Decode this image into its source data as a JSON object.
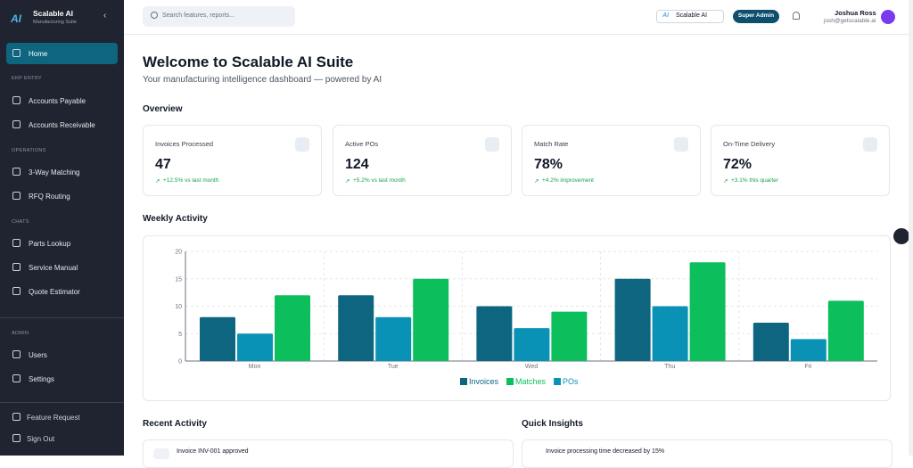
{
  "brand": {
    "name": "Scalable AI",
    "subtitle": "Manufacturing Suite",
    "logo": "AI"
  },
  "nav": {
    "home": "Home",
    "sections": [
      {
        "title": "ERP ENTRY",
        "items": [
          "Accounts Payable",
          "Accounts Receivable"
        ]
      },
      {
        "title": "OPERATIONS",
        "items": [
          "3-Way Matching",
          "RFQ Routing"
        ]
      },
      {
        "title": "CHATS",
        "items": [
          "Parts Lookup",
          "Service Manual",
          "Quote Estimator"
        ]
      },
      {
        "title": "ADMIN",
        "items": [
          "Users",
          "Settings"
        ]
      }
    ],
    "footer": [
      "Feature Request",
      "Sign Out"
    ]
  },
  "header": {
    "search_placeholder": "Search features, reports...",
    "workspace": "Scalable AI",
    "role": "Super Admin",
    "user_name": "Joshua Ross",
    "user_email": "josh@getscalable.ai"
  },
  "page": {
    "title": "Welcome to Scalable AI Suite",
    "subtitle": "Your manufacturing intelligence dashboard — powered by AI",
    "overview_heading": "Overview",
    "weekly_heading": "Weekly Activity",
    "recent_heading": "Recent Activity",
    "insights_heading": "Quick Insights"
  },
  "stats": [
    {
      "label": "Invoices Processed",
      "value": "47",
      "change": "+12.5% vs last month"
    },
    {
      "label": "Active POs",
      "value": "124",
      "change": "+5.2% vs last month"
    },
    {
      "label": "Match Rate",
      "value": "78%",
      "change": "+4.2% improvement"
    },
    {
      "label": "On-Time Delivery",
      "value": "72%",
      "change": "+3.1% this quarter"
    }
  ],
  "recent": [
    "Invoice INV-001 approved"
  ],
  "insights": [
    "Invoice processing time decreased by 15%"
  ],
  "chart_data": {
    "type": "bar",
    "categories": [
      "Mon",
      "Tue",
      "Wed",
      "Thu",
      "Fri"
    ],
    "series": [
      {
        "name": "Invoices",
        "color": "#0e6580",
        "values": [
          8,
          12,
          10,
          15,
          7
        ]
      },
      {
        "name": "Matches",
        "color": "#0cbf5c",
        "values": [
          12,
          15,
          9,
          18,
          11
        ]
      },
      {
        "name": "POs",
        "color": "#0a92b6",
        "values": [
          5,
          8,
          6,
          10,
          4
        ]
      }
    ],
    "ylim": [
      0,
      20
    ],
    "yticks": [
      0,
      5,
      10,
      15,
      20
    ],
    "grid": true
  }
}
